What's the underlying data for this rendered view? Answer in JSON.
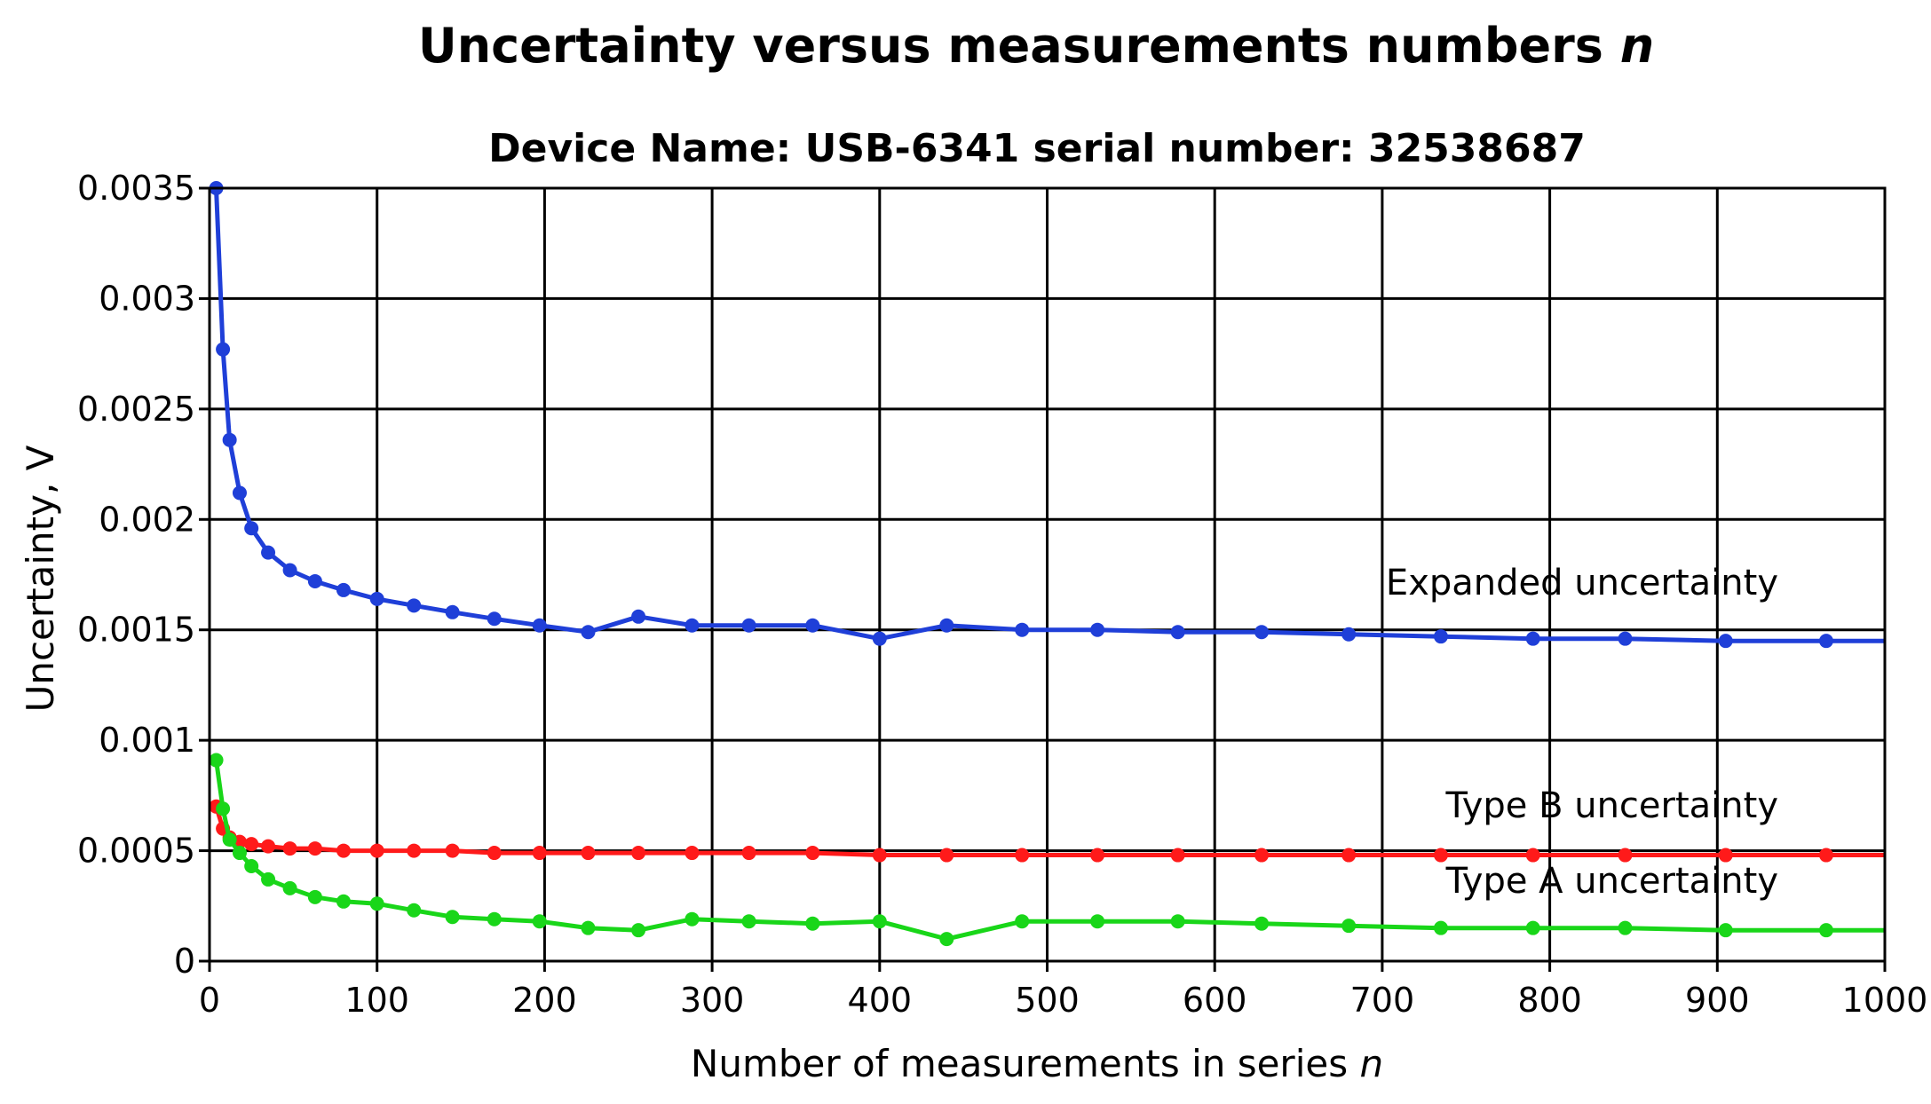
{
  "chart_data": {
    "type": "line",
    "title": "Uncertainty versus measurements numbers",
    "title_italic_suffix": "n",
    "subtitle": "Device Name: USB-6341 serial number: 32538687",
    "xlabel": "Number of measurements in series",
    "xlabel_italic_suffix": "n",
    "ylabel": "Uncertainty, V",
    "xlim": [
      0,
      1000
    ],
    "ylim": [
      0,
      0.0035
    ],
    "x_ticks": [
      0,
      100,
      200,
      300,
      400,
      500,
      600,
      700,
      800,
      900,
      1000
    ],
    "x_tick_labels": [
      "0",
      "100",
      "200",
      "300",
      "400",
      "500",
      "600",
      "700",
      "800",
      "900",
      "1000"
    ],
    "y_ticks": [
      0,
      0.0005,
      0.001,
      0.0015,
      0.002,
      0.0025,
      0.003,
      0.0035
    ],
    "y_tick_labels": [
      "0",
      "0.0005",
      "0.001",
      "0.0015",
      "0.002",
      "0.0025",
      "0.003",
      "0.0035"
    ],
    "grid": true,
    "series": [
      {
        "name": "Expanded uncertainty",
        "color": "#1f3fd8",
        "annotation": "Expanded uncertainty",
        "annotation_at": [
          1000,
          0.00166
        ],
        "x": [
          4,
          8,
          12,
          18,
          25,
          35,
          48,
          63,
          80,
          100,
          122,
          145,
          170,
          197,
          226,
          256,
          288,
          322,
          360,
          400,
          440,
          485,
          530,
          578,
          628,
          680,
          735,
          790,
          845,
          905,
          965,
          1000
        ],
        "y": [
          0.0035,
          0.00277,
          0.00236,
          0.00212,
          0.00196,
          0.00185,
          0.00177,
          0.00172,
          0.00168,
          0.00164,
          0.00161,
          0.00158,
          0.00155,
          0.00152,
          0.00149,
          0.00156,
          0.00152,
          0.00152,
          0.00152,
          0.00146,
          0.00152,
          0.0015,
          0.0015,
          0.00149,
          0.00149,
          0.00148,
          0.00147,
          0.00146,
          0.00146,
          0.00145,
          0.00145,
          0.00145
        ]
      },
      {
        "name": "Type B uncertainty",
        "color": "#ff1a1a",
        "annotation": "Type B uncertainty",
        "annotation_at": [
          1000,
          0.00065
        ],
        "x": [
          4,
          8,
          12,
          18,
          25,
          35,
          48,
          63,
          80,
          100,
          122,
          145,
          170,
          197,
          226,
          256,
          288,
          322,
          360,
          400,
          440,
          485,
          530,
          578,
          628,
          680,
          735,
          790,
          845,
          905,
          965,
          1000
        ],
        "y": [
          0.0007,
          0.0006,
          0.00056,
          0.00054,
          0.00053,
          0.00052,
          0.00051,
          0.00051,
          0.0005,
          0.0005,
          0.0005,
          0.0005,
          0.00049,
          0.00049,
          0.00049,
          0.00049,
          0.00049,
          0.00049,
          0.00049,
          0.00048,
          0.00048,
          0.00048,
          0.00048,
          0.00048,
          0.00048,
          0.00048,
          0.00048,
          0.00048,
          0.00048,
          0.00048,
          0.00048,
          0.00048
        ]
      },
      {
        "name": "Type A uncertainty",
        "color": "#19d619",
        "annotation": "Type A uncertainty",
        "annotation_at": [
          1000,
          0.00031
        ],
        "x": [
          4,
          8,
          12,
          18,
          25,
          35,
          48,
          63,
          80,
          100,
          122,
          145,
          170,
          197,
          226,
          256,
          288,
          322,
          360,
          400,
          440,
          485,
          530,
          578,
          628,
          680,
          735,
          790,
          845,
          905,
          965,
          1000
        ],
        "y": [
          0.00091,
          0.00069,
          0.00055,
          0.00049,
          0.00043,
          0.00037,
          0.00033,
          0.00029,
          0.00027,
          0.00026,
          0.00023,
          0.0002,
          0.00019,
          0.00018,
          0.00015,
          0.00014,
          0.00019,
          0.00018,
          0.00017,
          0.00018,
          0.0001,
          0.00018,
          0.00018,
          0.00018,
          0.00017,
          0.00016,
          0.00015,
          0.00015,
          0.00015,
          0.00014,
          0.00014,
          0.00014
        ]
      }
    ]
  }
}
